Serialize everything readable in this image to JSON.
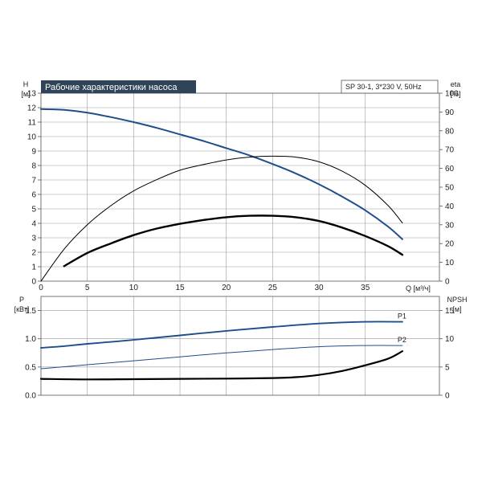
{
  "chart_data": [
    {
      "type": "line",
      "title": "Рабочие характеристики насоса",
      "subtitle": "SP 30-1, 3*230 V, 50Hz",
      "xlabel": "Q [м³/ч]",
      "ylabel_left": [
        "H",
        "[м]"
      ],
      "ylabel_right": [
        "eta",
        "[%]"
      ],
      "xlim": [
        0,
        43
      ],
      "xticks": [
        0,
        5,
        10,
        15,
        20,
        25,
        30,
        35
      ],
      "ylim_left": [
        0,
        13
      ],
      "yticks_left": [
        0,
        1,
        2,
        3,
        4,
        5,
        6,
        7,
        8,
        9,
        10,
        11,
        12,
        13
      ],
      "ylim_right": [
        0,
        100
      ],
      "yticks_right": [
        0,
        10,
        20,
        30,
        40,
        50,
        60,
        70,
        80,
        90,
        100
      ],
      "grid": true,
      "colors": {
        "head": "#1f4e8c",
        "eta": "#000000",
        "eta_total": "#000000"
      },
      "series": [
        {
          "key": "head",
          "axis": "left",
          "x": [
            0,
            2.5,
            5,
            7.5,
            10,
            12.5,
            15,
            17.5,
            20,
            22.5,
            25,
            27.5,
            30,
            32.5,
            35,
            37.5,
            39
          ],
          "values": [
            11.9,
            11.85,
            11.65,
            11.35,
            11.0,
            10.6,
            10.15,
            9.7,
            9.2,
            8.7,
            8.1,
            7.45,
            6.7,
            5.85,
            4.9,
            3.75,
            2.9
          ]
        },
        {
          "key": "eta",
          "axis": "right",
          "x": [
            0,
            2.5,
            5,
            7.5,
            10,
            12.5,
            15,
            17.5,
            20,
            22.5,
            25,
            27.5,
            30,
            32.5,
            35,
            37.5,
            39
          ],
          "values": [
            0,
            17,
            30,
            40,
            48,
            54,
            59,
            62,
            64.5,
            66,
            66.5,
            66,
            63.5,
            58.5,
            51,
            40,
            31
          ]
        },
        {
          "key": "eta_total",
          "axis": "right",
          "x": [
            2.5,
            5,
            7.5,
            10,
            12.5,
            15,
            17.5,
            20,
            22.5,
            25,
            27.5,
            30,
            32.5,
            35,
            37.5,
            39
          ],
          "values": [
            8,
            15,
            20,
            24.5,
            28,
            30.5,
            32.5,
            34,
            34.8,
            34.8,
            34,
            32,
            28.5,
            24,
            18.5,
            14
          ]
        }
      ]
    },
    {
      "type": "line",
      "ylabel_left": [
        "P",
        "[кВт]"
      ],
      "ylabel_right": [
        "NPSH",
        "[м]"
      ],
      "xlim": [
        0,
        43
      ],
      "ylim_left": [
        0,
        1.75
      ],
      "yticks_left": [
        0.0,
        0.5,
        1.0,
        1.5
      ],
      "yticks_left_labels": [
        "0.0",
        "0.5",
        "1.0",
        "1.5"
      ],
      "ylim_right": [
        0,
        17.5
      ],
      "yticks_right": [
        0,
        5,
        10,
        15
      ],
      "grid": true,
      "colors": {
        "P1": "#1f4e8c",
        "P2": "#1f4e8c",
        "npsh": "#000000"
      },
      "series": [
        {
          "key": "P1",
          "name": "P1",
          "axis": "left",
          "x": [
            0,
            2.5,
            5,
            10,
            15,
            20,
            25,
            30,
            35,
            39
          ],
          "values": [
            0.84,
            0.87,
            0.91,
            0.98,
            1.06,
            1.14,
            1.21,
            1.27,
            1.3,
            1.3
          ]
        },
        {
          "key": "P2",
          "name": "P2",
          "axis": "left",
          "x": [
            0,
            5,
            10,
            15,
            20,
            25,
            30,
            35,
            39
          ],
          "values": [
            0.47,
            0.54,
            0.61,
            0.68,
            0.75,
            0.81,
            0.86,
            0.88,
            0.88
          ]
        },
        {
          "key": "npsh",
          "axis": "right",
          "x": [
            0,
            5,
            10,
            15,
            20,
            25,
            27.5,
            30,
            32.5,
            35,
            37.5,
            39
          ],
          "values": [
            2.9,
            2.8,
            2.85,
            2.9,
            2.95,
            3.05,
            3.2,
            3.6,
            4.3,
            5.3,
            6.5,
            7.8
          ]
        }
      ]
    }
  ]
}
